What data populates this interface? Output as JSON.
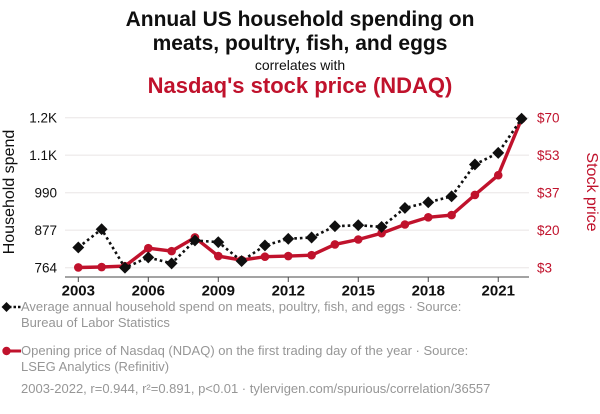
{
  "header": {
    "title_line1": "Annual US household spending on",
    "title_line2": "meats, poultry, fish, and eggs",
    "connector": "correlates with",
    "subtitle": "Nasdaq's stock price (NDAQ)"
  },
  "colors": {
    "accent_red": "#c0122c",
    "series_black": "#0f0f0f",
    "legend_gray": "#969696",
    "gridline": "#efecec",
    "axis_line": "#474747"
  },
  "chart_data": {
    "type": "line",
    "title": "Annual US household spending on meats, poultry, fish, and eggs correlates with Nasdaq's stock price (NDAQ)",
    "x": [
      2003,
      2004,
      2005,
      2006,
      2007,
      2008,
      2009,
      2010,
      2011,
      2012,
      2013,
      2014,
      2015,
      2016,
      2017,
      2018,
      2019,
      2020,
      2021,
      2022
    ],
    "x_ticks": [
      2003,
      2006,
      2009,
      2012,
      2015,
      2018,
      2021
    ],
    "grid": true,
    "legend_position": "bottom",
    "series": [
      {
        "name": "Average annual household spend on meats, poultry, fish, and eggs",
        "axis": "left",
        "color": "#0f0f0f",
        "marker": "diamond",
        "line": "dotted",
        "values": [
          825,
          880,
          764,
          795,
          777,
          846,
          841,
          784,
          831,
          851,
          855,
          889,
          892,
          887,
          944,
          961,
          979,
          1075,
          1110,
          1213
        ]
      },
      {
        "name": "Opening price of Nasdaq (NDAQ) on the first trading day of the year",
        "axis": "right",
        "color": "#c0122c",
        "marker": "circle",
        "line": "solid",
        "values": [
          3.1,
          3.3,
          3.7,
          11.7,
          10.4,
          16.5,
          8.2,
          6.4,
          7.9,
          8.2,
          8.6,
          13.4,
          15.6,
          18.4,
          22.3,
          25.5,
          26.5,
          35.5,
          44.3,
          69.5
        ]
      }
    ],
    "left_axis": {
      "label": "Household spend",
      "tick_labels": [
        "764",
        "877",
        "990",
        "1.1K",
        "1.2K"
      ],
      "range": [
        764,
        1216
      ]
    },
    "right_axis": {
      "label": "Stock price",
      "tick_labels": [
        "$3",
        "$20",
        "$37",
        "$53",
        "$70"
      ],
      "range": [
        3,
        70
      ]
    }
  },
  "legend": {
    "item1": "Average annual household spend on meats, poultry, fish, and eggs · Source: Bureau of Labor Statistics",
    "item2": "Opening price of Nasdaq (NDAQ) on the first trading day of the year · Source: LSEG Analytics (Refinitiv)"
  },
  "footer": {
    "stats": "2003-2022, r=0.944, r²=0.891, p<0.01 · tylervigen.com/spurious/correlation/36557"
  }
}
